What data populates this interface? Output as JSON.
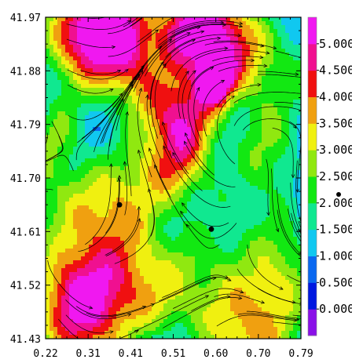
{
  "chart_data": {
    "type": "heatmap",
    "title": "",
    "xlabel": "",
    "ylabel": "",
    "x_ticks": [
      "0.22",
      "0.31",
      "0.41",
      "0.51",
      "0.60",
      "0.70",
      "0.79"
    ],
    "y_ticks": [
      "41.97",
      "41.88",
      "41.79",
      "41.70",
      "41.61",
      "41.52",
      "41.43"
    ],
    "xlim": [
      0.22,
      0.79
    ],
    "ylim": [
      41.43,
      41.97
    ],
    "overlay": "streamlines",
    "colorbar": {
      "levels": [
        "0.000",
        "0.500",
        "1.000",
        "1.500",
        "2.000",
        "2.500",
        "3.000",
        "3.500",
        "4.000",
        "4.500",
        "5.000"
      ],
      "colors": [
        "#8a10e8",
        "#0018e0",
        "#0a68f0",
        "#10c8f0",
        "#10e890",
        "#12e812",
        "#90e810",
        "#f0f010",
        "#f0a010",
        "#f01010",
        "#f01090",
        "#f018f0"
      ]
    },
    "points": [
      {
        "x": 0.385,
        "y": 41.655
      },
      {
        "x": 0.59,
        "y": 41.614
      }
    ]
  }
}
